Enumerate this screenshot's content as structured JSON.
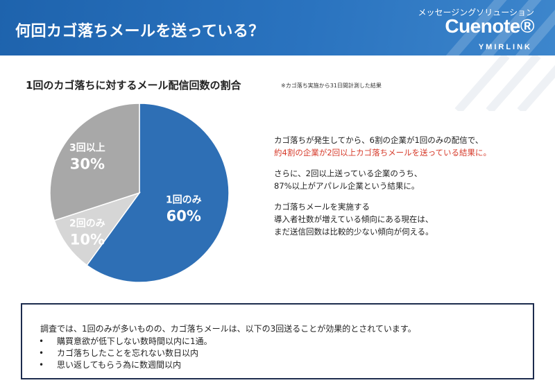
{
  "header": {
    "title": "何回カゴ落ちメールを送っている？",
    "brand_tagline": "メッセージングソリューション",
    "brand_name": "Cuenote®",
    "brand_company": "YMIRLINK"
  },
  "section": {
    "title": "1回のカゴ落ちに対するメール配信回数の割合",
    "note": "※カゴ落ち実施から31日間計測した結果"
  },
  "chart_data": {
    "type": "pie",
    "slices": [
      {
        "label": "1回のみ",
        "value": 60,
        "value_label": "60%",
        "color": "#2e6fb5"
      },
      {
        "label": "2回のみ",
        "value": 10,
        "value_label": "10%",
        "color": "#d6d6d6"
      },
      {
        "label": "3回以上",
        "value": 30,
        "value_label": "30%",
        "color": "#a8a8a8"
      }
    ]
  },
  "description": {
    "p1_line1": "カゴ落ちが発生してから、6割の企業が1回のみの配信で、",
    "p1_line2": "約4割の企業が2回以上カゴ落ちメールを送っている結果に。",
    "p2_line1": "さらに、2回以上送っている企業のうち、",
    "p2_line2": "87%以上がアパレル企業という結果に。",
    "p3_line1": "カゴ落ちメールを実施する",
    "p3_line2": "導入者社数が増えている傾向にある現在は、",
    "p3_line3": "まだ送信回数は比較的少ない傾向が伺える。"
  },
  "summary": {
    "intro": "調査では、1回のみが多いものの、カゴ落ちメールは、以下の3回送ることが効果的とされています。",
    "bullet_char": "•",
    "items": [
      "購買意欲が低下しない数時間以内に1通。",
      "カゴ落ちしたことを忘れない数日以内",
      "思い返してもらう為に数週間以内"
    ]
  },
  "colors": {
    "header_blue": "#2a73bf",
    "slice_primary": "#2e6fb5",
    "highlight_red": "#d63a2a",
    "box_border": "#1c2b4d"
  }
}
